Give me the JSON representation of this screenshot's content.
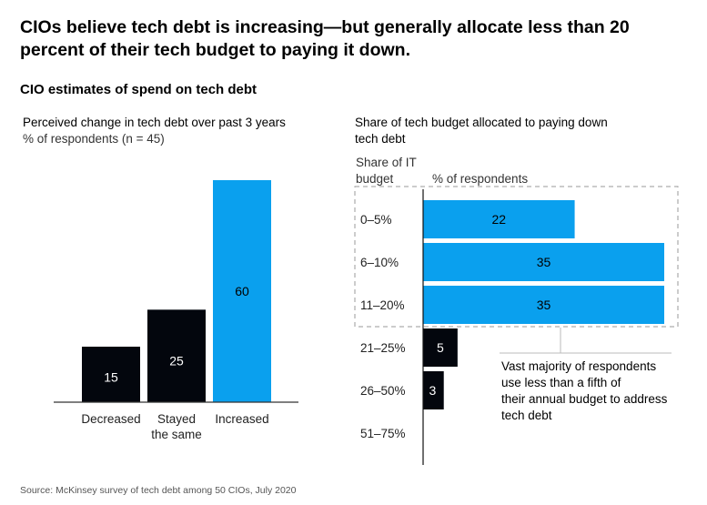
{
  "title": "CIOs believe tech debt is increasing—but generally allocate less than 20 percent of their tech budget to paying it down.",
  "subtitle": "CIO estimates of spend on tech debt",
  "source": "Source: McKinsey survey of tech debt among 50 CIOs, July 2020",
  "colors": {
    "blue": "#0aa0ee",
    "black": "#03060d",
    "axis": "#333333"
  },
  "chart_data": [
    {
      "type": "bar",
      "title": "Perceived change in tech debt over past 3 years",
      "ylabel": "% of respondents (n = 45)",
      "categories": [
        "Decreased",
        "Stayed the same",
        "Increased"
      ],
      "category_lines": [
        [
          "Decreased"
        ],
        [
          "Stayed",
          "the same"
        ],
        [
          "Increased"
        ]
      ],
      "values": [
        15,
        25,
        60
      ],
      "bar_colors": [
        "black",
        "black",
        "blue"
      ],
      "ylim": [
        0,
        60
      ],
      "grid": false
    },
    {
      "type": "bar",
      "orientation": "horizontal",
      "title_lines": [
        "Share of tech budget allocated to paying down",
        "tech debt"
      ],
      "ylabel_lines": [
        "Share of IT",
        "budget"
      ],
      "xlabel": "% of respondents",
      "categories": [
        "0–5%",
        "6–10%",
        "11–20%",
        "21–25%",
        "26–50%",
        "51–75%"
      ],
      "values": [
        22,
        35,
        35,
        5,
        3,
        0
      ],
      "bar_colors": [
        "blue",
        "blue",
        "blue",
        "black",
        "black",
        "black"
      ],
      "xlim": [
        0,
        35
      ],
      "grid": false,
      "annotation_lines": [
        "Vast majority of respondents",
        "use less than a fifth of",
        "their annual budget to address",
        "tech debt"
      ]
    }
  ]
}
